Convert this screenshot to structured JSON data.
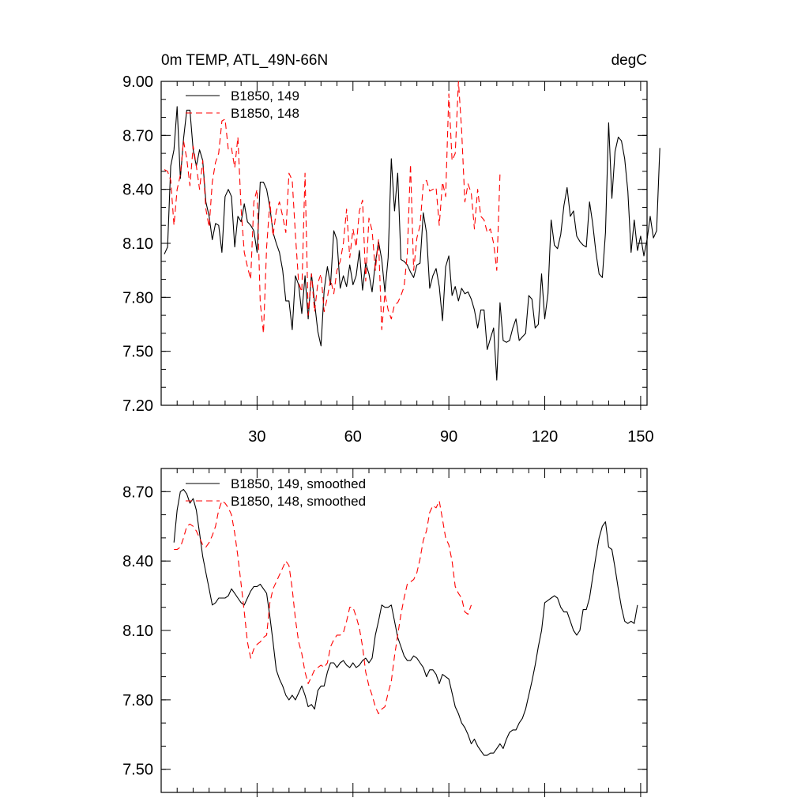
{
  "chart_data": [
    {
      "type": "line",
      "title_left": "0m TEMP, ATL_49N-66N",
      "title_right": "degC",
      "xlim": [
        0,
        152
      ],
      "ylim": [
        7.2,
        9.0
      ],
      "x_ticks": [
        30,
        60,
        90,
        120,
        150
      ],
      "x_tick_labels": [
        "30",
        "60",
        "90",
        "120",
        "150"
      ],
      "y_ticks": [
        7.2,
        7.5,
        7.8,
        8.1,
        8.4,
        8.7,
        9.0
      ],
      "y_tick_labels": [
        "7.20",
        "7.50",
        "7.80",
        "8.10",
        "8.40",
        "8.70",
        "9.00"
      ],
      "series": [
        {
          "name": "B1850, 149",
          "color": "#000000",
          "dash": "solid",
          "values": [
            8.04,
            8.08,
            8.53,
            8.62,
            8.86,
            8.46,
            8.68,
            8.84,
            8.84,
            8.62,
            8.53,
            8.62,
            8.56,
            8.33,
            8.25,
            8.12,
            8.21,
            8.2,
            8.05,
            8.36,
            8.4,
            8.36,
            8.08,
            8.25,
            8.22,
            8.32,
            8.22,
            8.2,
            8.17,
            8.05,
            8.44,
            8.44,
            8.4,
            8.3,
            8.16,
            8.1,
            8.05,
            7.95,
            7.78,
            7.78,
            7.62,
            7.92,
            7.87,
            7.71,
            7.92,
            7.68,
            7.93,
            7.77,
            7.61,
            7.53,
            7.84,
            7.97,
            7.87,
            8.17,
            8.12,
            7.85,
            7.92,
            7.86,
            7.98,
            7.87,
            7.92,
            8.06,
            7.84,
            7.99,
            7.93,
            7.83,
            7.99,
            8.11,
            8.01,
            7.83,
            8.02,
            8.57,
            8.28,
            8.49,
            8.01,
            8.0,
            7.98,
            7.94,
            7.91,
            7.98,
            7.99,
            8.27,
            8.16,
            7.85,
            7.92,
            7.96,
            7.86,
            7.67,
            7.97,
            8.03,
            7.81,
            7.86,
            7.78,
            7.85,
            7.82,
            7.83,
            7.79,
            7.73,
            7.63,
            7.73,
            7.73,
            7.51,
            7.57,
            7.63,
            7.34,
            7.77,
            7.56,
            7.55,
            7.56,
            7.63,
            7.68,
            7.56,
            7.58,
            7.6,
            7.81,
            7.79,
            7.63,
            7.65,
            7.93,
            7.68,
            7.82,
            8.23,
            8.09,
            8.07,
            8.15,
            8.31,
            8.41,
            8.25,
            8.28,
            8.14,
            8.11,
            8.09,
            8.08,
            8.33,
            8.21,
            8.05,
            7.93,
            7.91,
            8.16,
            8.77,
            8.35,
            8.61,
            8.69,
            8.67,
            8.57,
            8.39,
            8.05,
            8.23,
            8.06,
            8.14,
            8.03,
            8.12,
            8.25,
            8.13,
            8.17,
            8.63
          ]
        },
        {
          "name": "B1850, 148",
          "color": "#ff0000",
          "dash": "dashed",
          "values": [
            8.51,
            8.5,
            8.45,
            8.2,
            8.4,
            8.48,
            8.67,
            8.57,
            8.42,
            8.64,
            8.53,
            8.4,
            8.56,
            8.29,
            8.19,
            8.44,
            8.55,
            8.6,
            8.78,
            8.79,
            8.62,
            8.63,
            8.52,
            8.69,
            8.29,
            8.05,
            7.97,
            7.9,
            8.33,
            8.4,
            7.77,
            7.6,
            8.08,
            8.33,
            8.14,
            8.28,
            8.33,
            8.25,
            8.16,
            8.49,
            8.45,
            8.15,
            7.88,
            7.83,
            8.49,
            7.7,
            7.93,
            7.72,
            7.88,
            7.93,
            7.72,
            7.8,
            7.9,
            7.82,
            7.95,
            8.0,
            8.1,
            8.29,
            8.02,
            8.18,
            8.08,
            8.28,
            8.34,
            7.89,
            8.24,
            8.17,
            7.95,
            8.12,
            7.62,
            7.82,
            7.73,
            7.68,
            7.76,
            7.77,
            7.81,
            7.86,
            8.04,
            8.54,
            7.95,
            8.13,
            8.2,
            8.43,
            8.45,
            8.39,
            8.4,
            8.41,
            8.2,
            8.44,
            8.36,
            8.93,
            8.56,
            8.6,
            9.0,
            8.73,
            8.33,
            8.43,
            8.38,
            8.18,
            8.4,
            8.25,
            8.23,
            8.16,
            8.18,
            8.1,
            7.95,
            8.49
          ]
        }
      ]
    },
    {
      "type": "line",
      "xlim": [
        0,
        152
      ],
      "ylim": [
        7.4,
        8.8
      ],
      "x_ticks": [
        30,
        60,
        90,
        120,
        150
      ],
      "y_ticks": [
        7.5,
        7.8,
        8.1,
        8.4,
        8.7
      ],
      "y_tick_labels": [
        "7.50",
        "7.80",
        "8.10",
        "8.40",
        "8.70"
      ],
      "series": [
        {
          "name": "B1850, 149, smoothed",
          "color": "#000000",
          "dash": "solid",
          "x_start": 4,
          "values": [
            8.48,
            8.62,
            8.7,
            8.71,
            8.69,
            8.65,
            8.67,
            8.62,
            8.52,
            8.42,
            8.35,
            8.28,
            8.21,
            8.22,
            8.24,
            8.24,
            8.24,
            8.25,
            8.28,
            8.26,
            8.24,
            8.22,
            8.21,
            8.24,
            8.27,
            8.29,
            8.29,
            8.3,
            8.28,
            8.26,
            8.16,
            8.05,
            7.93,
            7.89,
            7.86,
            7.82,
            7.8,
            7.82,
            7.8,
            7.83,
            7.86,
            7.82,
            7.77,
            7.78,
            7.76,
            7.84,
            7.86,
            7.86,
            7.92,
            7.96,
            7.96,
            7.94,
            7.96,
            7.97,
            7.95,
            7.94,
            7.96,
            7.94,
            7.95,
            7.97,
            7.98,
            7.96,
            7.98,
            8.08,
            8.14,
            8.21,
            8.2,
            8.2,
            8.21,
            8.14,
            8.07,
            8.03,
            7.99,
            7.97,
            7.97,
            7.99,
            7.98,
            7.96,
            7.94,
            7.9,
            7.93,
            7.93,
            7.91,
            7.87,
            7.91,
            7.9,
            7.89,
            7.83,
            7.77,
            7.74,
            7.7,
            7.68,
            7.65,
            7.61,
            7.63,
            7.6,
            7.58,
            7.56,
            7.56,
            7.57,
            7.57,
            7.59,
            7.61,
            7.59,
            7.63,
            7.66,
            7.67,
            7.67,
            7.7,
            7.72,
            7.76,
            7.82,
            7.88,
            7.95,
            8.03,
            8.1,
            8.22,
            8.23,
            8.24,
            8.25,
            8.24,
            8.2,
            8.18,
            8.18,
            8.14,
            8.1,
            8.08,
            8.1,
            8.19,
            8.19,
            8.24,
            8.33,
            8.42,
            8.5,
            8.55,
            8.57,
            8.46,
            8.45,
            8.37,
            8.28,
            8.2,
            8.14,
            8.13,
            8.14,
            8.13,
            8.21
          ]
        },
        {
          "name": "B1850, 148, smoothed",
          "color": "#ff0000",
          "dash": "dashed",
          "x_start": 4,
          "values": [
            8.45,
            8.45,
            8.46,
            8.5,
            8.55,
            8.56,
            8.55,
            8.53,
            8.5,
            8.47,
            8.46,
            8.48,
            8.51,
            8.55,
            8.62,
            8.66,
            8.65,
            8.63,
            8.6,
            8.52,
            8.42,
            8.3,
            8.18,
            8.05,
            7.98,
            8.02,
            8.04,
            8.05,
            8.07,
            8.08,
            8.22,
            8.28,
            8.31,
            8.34,
            8.37,
            8.4,
            8.38,
            8.28,
            8.15,
            8.05,
            8.0,
            7.92,
            7.87,
            7.9,
            7.93,
            7.94,
            7.95,
            7.94,
            7.96,
            8.03,
            8.06,
            8.08,
            8.08,
            8.09,
            8.14,
            8.2,
            8.2,
            8.16,
            8.11,
            8.03,
            7.92,
            7.86,
            7.82,
            7.77,
            7.74,
            7.76,
            7.77,
            7.83,
            7.88,
            7.99,
            8.08,
            8.17,
            8.24,
            8.3,
            8.31,
            8.32,
            8.35,
            8.41,
            8.49,
            8.53,
            8.61,
            8.64,
            8.63,
            8.66,
            8.58,
            8.5,
            8.47,
            8.4,
            8.29,
            8.26,
            8.24,
            8.18,
            8.17,
            8.21
          ]
        }
      ]
    }
  ]
}
